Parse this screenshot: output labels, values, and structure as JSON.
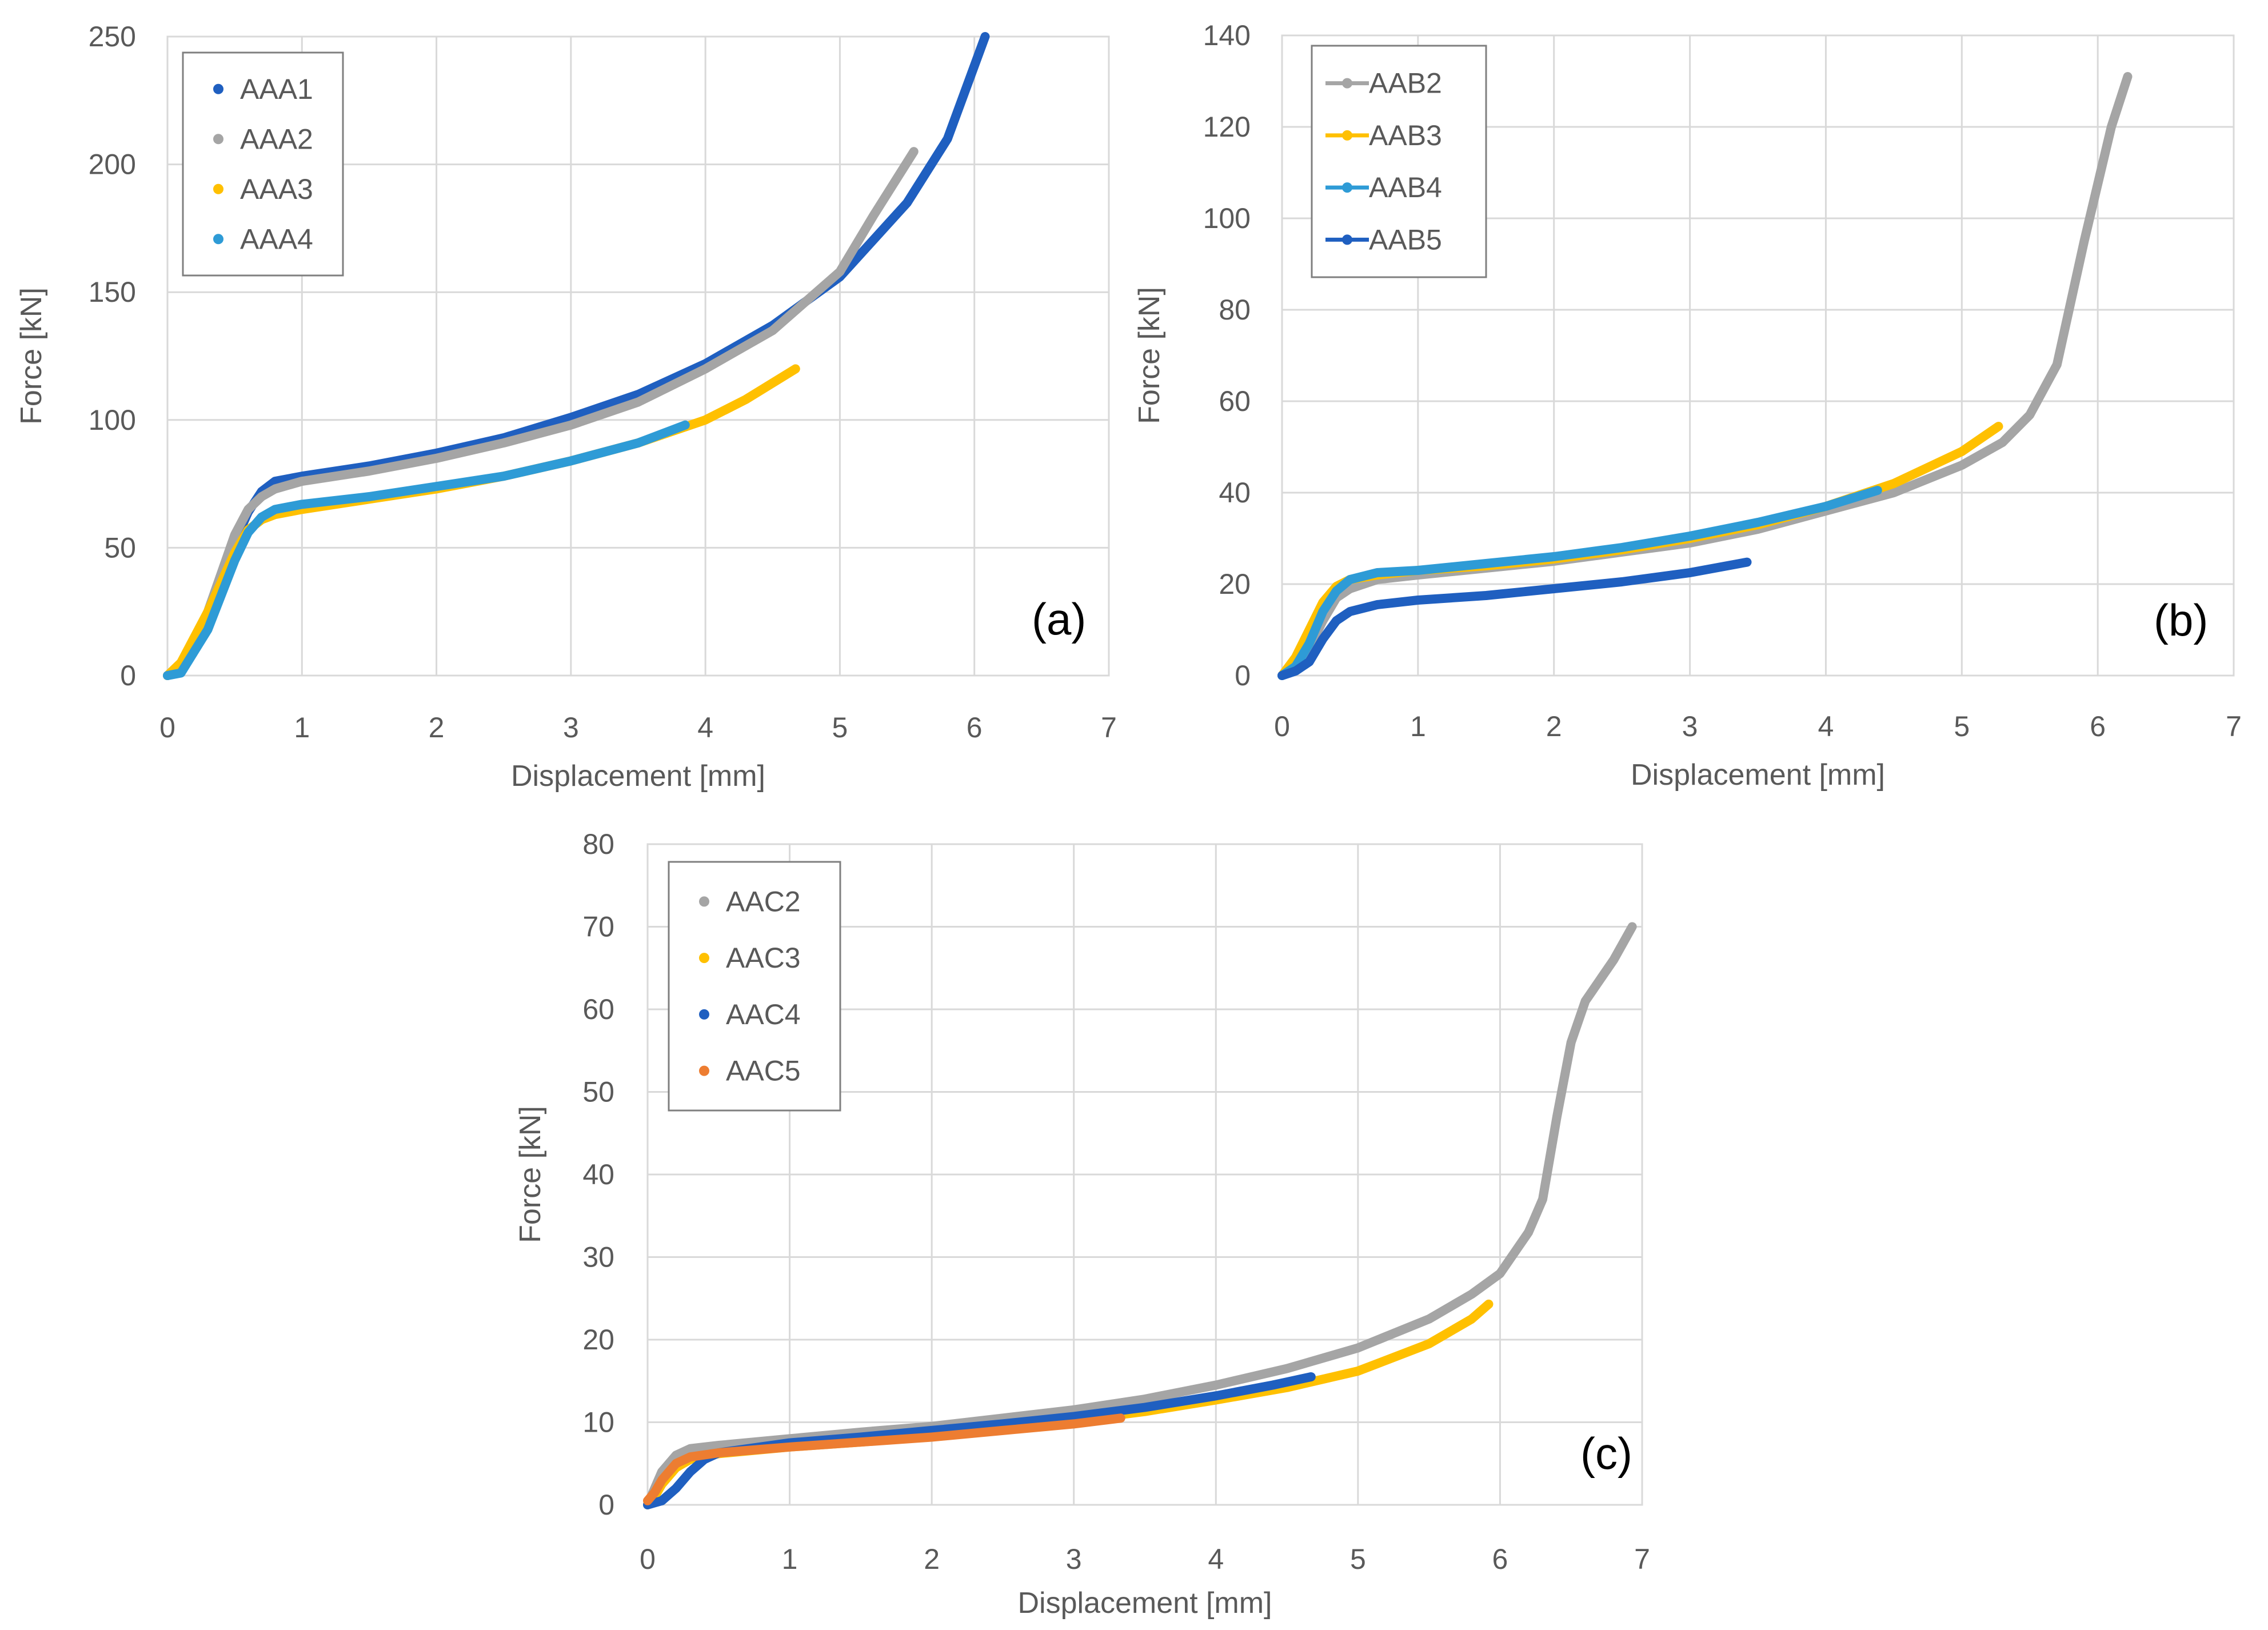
{
  "chart_data": [
    {
      "type": "line",
      "panel_label": "(a)",
      "xlabel": "Displacement [mm]",
      "ylabel": "Force [kN]",
      "xlim": [
        0,
        7
      ],
      "ylim": [
        0,
        250
      ],
      "xticks": [
        0,
        1,
        2,
        3,
        4,
        5,
        6,
        7
      ],
      "yticks": [
        0,
        50,
        100,
        150,
        200,
        250
      ],
      "grid": true,
      "legend_position": "top-left",
      "series": [
        {
          "name": "AAA1",
          "color": "#1F5FC0",
          "marker": "dot",
          "x": [
            0,
            0.1,
            0.3,
            0.5,
            0.6,
            0.7,
            0.8,
            1,
            1.5,
            2,
            2.5,
            3,
            3.5,
            4,
            4.5,
            5,
            5.5,
            5.8,
            6.08
          ],
          "y": [
            0,
            2,
            22,
            52,
            64,
            72,
            76,
            78,
            82,
            87,
            93,
            101,
            110,
            122,
            137,
            156,
            185,
            210,
            250
          ]
        },
        {
          "name": "AAA2",
          "color": "#A5A5A5",
          "marker": "dot",
          "x": [
            0,
            0.1,
            0.3,
            0.5,
            0.6,
            0.7,
            0.8,
            1,
            1.5,
            2,
            2.5,
            3,
            3.5,
            4,
            4.5,
            5,
            5.25,
            5.55
          ],
          "y": [
            0,
            3,
            25,
            55,
            65,
            70,
            73,
            76,
            80,
            85,
            91,
            98,
            107,
            120,
            135,
            158,
            180,
            205
          ]
        },
        {
          "name": "AAA3",
          "color": "#FFC000",
          "marker": "dot",
          "x": [
            0,
            0.1,
            0.3,
            0.5,
            0.6,
            0.7,
            0.8,
            1,
            1.5,
            2,
            2.5,
            3,
            3.5,
            4,
            4.3,
            4.67
          ],
          "y": [
            0,
            5,
            25,
            48,
            57,
            61,
            63,
            65,
            69,
            73,
            78,
            84,
            91,
            100,
            108,
            120
          ]
        },
        {
          "name": "AAA4",
          "color": "#2E9BD6",
          "marker": "dot",
          "x": [
            0,
            0.1,
            0.3,
            0.5,
            0.6,
            0.7,
            0.8,
            1,
            1.5,
            2,
            2.5,
            3,
            3.5,
            3.85
          ],
          "y": [
            0,
            1,
            18,
            45,
            56,
            62,
            65,
            67,
            70,
            74,
            78,
            84,
            91,
            98
          ]
        }
      ]
    },
    {
      "type": "line",
      "panel_label": "(b)",
      "xlabel": "Displacement [mm]",
      "ylabel": "Force [kN]",
      "xlim": [
        0,
        7
      ],
      "ylim": [
        0,
        140
      ],
      "xticks": [
        0,
        1,
        2,
        3,
        4,
        5,
        6,
        7
      ],
      "yticks": [
        0,
        20,
        40,
        60,
        80,
        100,
        120,
        140
      ],
      "grid": true,
      "legend_position": "top-left",
      "series": [
        {
          "name": "AAB2",
          "color": "#A5A5A5",
          "marker": "line-dot",
          "x": [
            0,
            0.1,
            0.2,
            0.3,
            0.4,
            0.5,
            0.7,
            1,
            1.5,
            2,
            2.5,
            3,
            3.5,
            4,
            4.5,
            5,
            5.3,
            5.5,
            5.7,
            5.9,
            6.1,
            6.22
          ],
          "y": [
            0,
            2,
            6,
            12,
            17,
            19,
            21,
            22,
            23.5,
            25,
            27,
            29,
            32,
            36,
            40,
            46,
            51,
            57,
            68,
            95,
            120,
            131
          ]
        },
        {
          "name": "AAB3",
          "color": "#FFC000",
          "marker": "line-dot",
          "x": [
            0,
            0.1,
            0.2,
            0.3,
            0.4,
            0.5,
            0.7,
            1,
            1.5,
            2,
            2.5,
            3,
            3.5,
            4,
            4.5,
            5,
            5.27
          ],
          "y": [
            0,
            4,
            10,
            16,
            19.5,
            21,
            22,
            23,
            24,
            25.5,
            27.5,
            30,
            33,
            37,
            42,
            49,
            54.5
          ]
        },
        {
          "name": "AAB4",
          "color": "#2E9BD6",
          "marker": "line-dot",
          "x": [
            0,
            0.1,
            0.2,
            0.3,
            0.4,
            0.5,
            0.7,
            1,
            1.5,
            2,
            2.5,
            3,
            3.5,
            4,
            4.38
          ],
          "y": [
            0,
            2,
            7,
            14,
            18.5,
            21,
            22.5,
            23,
            24.5,
            26,
            28,
            30.5,
            33.5,
            37,
            40.5
          ]
        },
        {
          "name": "AAB5",
          "color": "#1F5FC0",
          "marker": "line-dot",
          "x": [
            0,
            0.1,
            0.2,
            0.3,
            0.4,
            0.5,
            0.7,
            1,
            1.5,
            2,
            2.5,
            3,
            3.42
          ],
          "y": [
            0,
            1,
            3,
            8,
            12,
            14,
            15.5,
            16.5,
            17.5,
            19,
            20.5,
            22.5,
            24.8
          ]
        }
      ]
    },
    {
      "type": "line",
      "panel_label": "(c)",
      "xlabel": "Displacement [mm]",
      "ylabel": "Force [kN]",
      "xlim": [
        0,
        7
      ],
      "ylim": [
        0,
        80
      ],
      "xticks": [
        0,
        1,
        2,
        3,
        4,
        5,
        6,
        7
      ],
      "yticks": [
        0,
        10,
        20,
        30,
        40,
        50,
        60,
        70,
        80
      ],
      "grid": true,
      "legend_position": "top-left",
      "series": [
        {
          "name": "AAC2",
          "color": "#A5A5A5",
          "marker": "dot",
          "x": [
            0,
            0.05,
            0.1,
            0.2,
            0.3,
            0.5,
            1,
            1.5,
            2,
            2.5,
            3,
            3.5,
            4,
            4.5,
            5,
            5.5,
            5.8,
            6,
            6.2,
            6.3,
            6.4,
            6.5,
            6.6,
            6.8,
            6.93
          ],
          "y": [
            0,
            2,
            4,
            6,
            6.8,
            7.2,
            8,
            8.8,
            9.5,
            10.5,
            11.5,
            12.8,
            14.5,
            16.5,
            19,
            22.5,
            25.5,
            28,
            33,
            37,
            47,
            56,
            61,
            66,
            70
          ]
        },
        {
          "name": "AAC3",
          "color": "#FFC000",
          "marker": "dot",
          "x": [
            0,
            0.05,
            0.1,
            0.2,
            0.3,
            0.5,
            1,
            1.5,
            2,
            2.5,
            3,
            3.5,
            4,
            4.5,
            5,
            5.5,
            5.8,
            5.92
          ],
          "y": [
            0,
            1,
            2.5,
            4.5,
            5.5,
            6.2,
            7,
            7.6,
            8.3,
            9.2,
            10.2,
            11.3,
            12.7,
            14.2,
            16.2,
            19.5,
            22.5,
            24.3
          ]
        },
        {
          "name": "AAC4",
          "color": "#1F5FC0",
          "marker": "dot",
          "x": [
            0,
            0.1,
            0.2,
            0.3,
            0.4,
            0.5,
            1,
            1.5,
            2,
            2.5,
            3,
            3.5,
            4,
            4.4,
            4.67
          ],
          "y": [
            0,
            0.5,
            2,
            4,
            5.5,
            6.3,
            7.5,
            8.2,
            9,
            9.8,
            10.7,
            11.8,
            13.2,
            14.5,
            15.5
          ]
        },
        {
          "name": "AAC5",
          "color": "#ED7D31",
          "marker": "dot",
          "x": [
            0,
            0.05,
            0.1,
            0.2,
            0.3,
            0.5,
            1,
            1.5,
            2,
            2.5,
            3,
            3.33
          ],
          "y": [
            0.5,
            1.5,
            3,
            5,
            5.8,
            6.3,
            7,
            7.6,
            8.2,
            9,
            9.8,
            10.5
          ]
        }
      ]
    }
  ]
}
